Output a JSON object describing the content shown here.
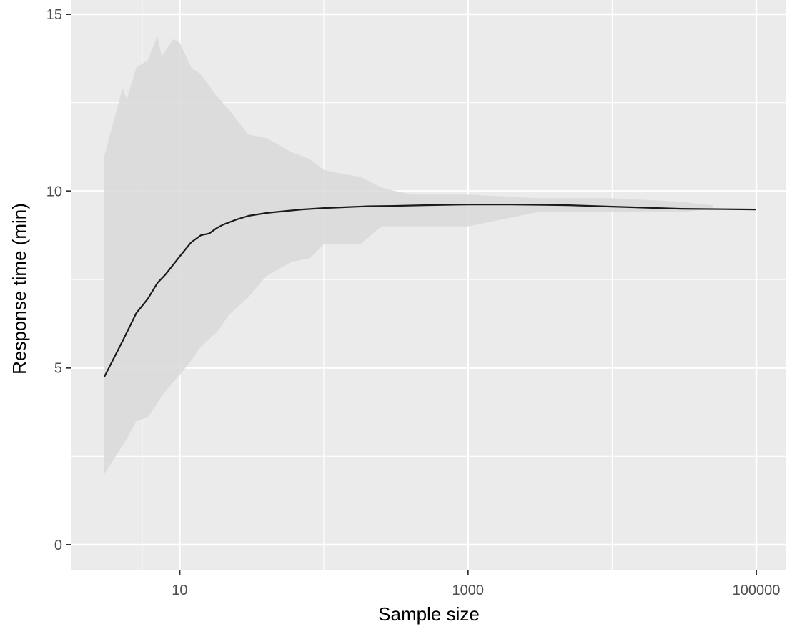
{
  "chart_data": {
    "type": "line",
    "title": "",
    "xlabel": "Sample size",
    "ylabel": "Response time (min)",
    "x_scale": "log10",
    "xlim": [
      3,
      100000
    ],
    "ylim": [
      0,
      15
    ],
    "x_ticks": [
      10,
      1000,
      100000
    ],
    "x_tick_labels": [
      "10",
      "1000",
      "100000"
    ],
    "y_ticks": [
      0,
      5,
      10,
      15
    ],
    "y_tick_labels": [
      "0",
      "5",
      "10",
      "15"
    ],
    "grid": true,
    "legend": "none",
    "colors": {
      "panel_background": "#ebebeb",
      "grid": "#ffffff",
      "band": "#d9d9d9",
      "line": "#1a1a1a"
    },
    "series": [
      {
        "x": [
          3,
          4,
          5,
          6,
          7,
          8,
          10,
          12,
          14,
          16,
          18,
          20,
          25,
          30,
          40,
          50,
          70,
          100,
          150,
          200,
          300,
          500,
          1000,
          2000,
          5000,
          10000,
          30000,
          100000
        ],
        "y": [
          4.75,
          5.75,
          6.55,
          6.95,
          7.4,
          7.65,
          8.15,
          8.55,
          8.75,
          8.8,
          8.95,
          9.05,
          9.2,
          9.3,
          9.38,
          9.42,
          9.48,
          9.52,
          9.55,
          9.57,
          9.58,
          9.6,
          9.62,
          9.62,
          9.6,
          9.56,
          9.5,
          9.48
        ]
      }
    ],
    "band": {
      "x": [
        3,
        4,
        4.3,
        5,
        6,
        7,
        7.5,
        9,
        10,
        12,
        14,
        18,
        22,
        30,
        40,
        60,
        80,
        100,
        130,
        180,
        250,
        400,
        500,
        1000,
        3000,
        10000,
        30000,
        50000
      ],
      "upper": [
        11.0,
        12.9,
        12.6,
        13.5,
        13.7,
        14.4,
        13.8,
        14.3,
        14.2,
        13.5,
        13.3,
        12.7,
        12.3,
        11.6,
        11.5,
        11.1,
        10.9,
        10.6,
        10.5,
        10.4,
        10.1,
        9.9,
        9.9,
        9.9,
        9.8,
        9.8,
        9.7,
        9.6
      ],
      "lower": [
        2.0,
        2.8,
        3.0,
        3.5,
        3.6,
        4.0,
        4.2,
        4.6,
        4.8,
        5.2,
        5.6,
        6.0,
        6.5,
        7.0,
        7.6,
        8.0,
        8.1,
        8.5,
        8.5,
        8.5,
        9.0,
        9.0,
        9.0,
        9.0,
        9.4,
        9.4,
        9.4,
        9.5
      ]
    }
  }
}
